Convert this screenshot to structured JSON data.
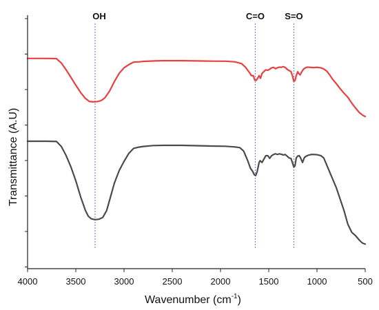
{
  "chart_data": {
    "type": "line",
    "title": "",
    "xlabel": "Wavenumber (cm",
    "xlabel_sup": "-1",
    "xlabel_end": ")",
    "ylabel": "Transmittance (A.U)",
    "xlim": [
      4000,
      500
    ],
    "x_reversed": true,
    "xticks": [
      "4000",
      "3500",
      "3000",
      "2500",
      "2000",
      "1500",
      "1000",
      "500"
    ],
    "ylim": [
      0,
      1
    ],
    "y_tick_labels_shown": false,
    "grid": false,
    "legend": "none",
    "annotations": [
      {
        "label": "OH",
        "x": 3300
      },
      {
        "label": "C=O",
        "x": 1640
      },
      {
        "label": "S=O",
        "x": 1240
      }
    ],
    "series": [
      {
        "color": "#e84040",
        "points": [
          [
            4000,
            0.865
          ],
          [
            3800,
            0.865
          ],
          [
            3700,
            0.864
          ],
          [
            3650,
            0.845
          ],
          [
            3600,
            0.815
          ],
          [
            3550,
            0.782
          ],
          [
            3500,
            0.748
          ],
          [
            3450,
            0.716
          ],
          [
            3400,
            0.69
          ],
          [
            3360,
            0.677
          ],
          [
            3320,
            0.675
          ],
          [
            3280,
            0.676
          ],
          [
            3240,
            0.68
          ],
          [
            3200,
            0.692
          ],
          [
            3150,
            0.722
          ],
          [
            3100,
            0.764
          ],
          [
            3050,
            0.8
          ],
          [
            3000,
            0.824
          ],
          [
            2950,
            0.838
          ],
          [
            2900,
            0.849
          ],
          [
            2850,
            0.85
          ],
          [
            2800,
            0.852
          ],
          [
            2700,
            0.854
          ],
          [
            2600,
            0.855
          ],
          [
            2400,
            0.855
          ],
          [
            2200,
            0.854
          ],
          [
            2050,
            0.853
          ],
          [
            1950,
            0.853
          ],
          [
            1850,
            0.85
          ],
          [
            1780,
            0.842
          ],
          [
            1740,
            0.826
          ],
          [
            1700,
            0.803
          ],
          [
            1680,
            0.79
          ],
          [
            1660,
            0.79
          ],
          [
            1645,
            0.77
          ],
          [
            1630,
            0.769
          ],
          [
            1615,
            0.778
          ],
          [
            1600,
            0.79
          ],
          [
            1585,
            0.778
          ],
          [
            1570,
            0.799
          ],
          [
            1550,
            0.808
          ],
          [
            1530,
            0.815
          ],
          [
            1510,
            0.813
          ],
          [
            1490,
            0.818
          ],
          [
            1470,
            0.824
          ],
          [
            1450,
            0.826
          ],
          [
            1430,
            0.82
          ],
          [
            1410,
            0.824
          ],
          [
            1390,
            0.827
          ],
          [
            1370,
            0.826
          ],
          [
            1350,
            0.829
          ],
          [
            1330,
            0.826
          ],
          [
            1310,
            0.818
          ],
          [
            1290,
            0.812
          ],
          [
            1270,
            0.808
          ],
          [
            1255,
            0.79
          ],
          [
            1240,
            0.765
          ],
          [
            1228,
            0.768
          ],
          [
            1215,
            0.79
          ],
          [
            1200,
            0.807
          ],
          [
            1190,
            0.8
          ],
          [
            1175,
            0.793
          ],
          [
            1160,
            0.805
          ],
          [
            1140,
            0.818
          ],
          [
            1120,
            0.824
          ],
          [
            1100,
            0.827
          ],
          [
            1070,
            0.826
          ],
          [
            1040,
            0.825
          ],
          [
            1000,
            0.826
          ],
          [
            960,
            0.824
          ],
          [
            930,
            0.819
          ],
          [
            900,
            0.81
          ],
          [
            870,
            0.794
          ],
          [
            840,
            0.775
          ],
          [
            800,
            0.755
          ],
          [
            760,
            0.733
          ],
          [
            720,
            0.713
          ],
          [
            680,
            0.695
          ],
          [
            640,
            0.67
          ],
          [
            600,
            0.648
          ],
          [
            560,
            0.628
          ],
          [
            530,
            0.618
          ],
          [
            500,
            0.611
          ]
        ]
      },
      {
        "color": "#4a4a4a",
        "points": [
          [
            4000,
            0.503
          ],
          [
            3800,
            0.503
          ],
          [
            3700,
            0.502
          ],
          [
            3650,
            0.48
          ],
          [
            3600,
            0.44
          ],
          [
            3550,
            0.39
          ],
          [
            3500,
            0.33
          ],
          [
            3450,
            0.26
          ],
          [
            3400,
            0.2
          ],
          [
            3370,
            0.175
          ],
          [
            3340,
            0.164
          ],
          [
            3300,
            0.16
          ],
          [
            3260,
            0.162
          ],
          [
            3220,
            0.17
          ],
          [
            3180,
            0.2
          ],
          [
            3140,
            0.26
          ],
          [
            3100,
            0.32
          ],
          [
            3050,
            0.375
          ],
          [
            3000,
            0.415
          ],
          [
            2950,
            0.45
          ],
          [
            2900,
            0.472
          ],
          [
            2850,
            0.477
          ],
          [
            2800,
            0.48
          ],
          [
            2700,
            0.484
          ],
          [
            2600,
            0.485
          ],
          [
            2400,
            0.485
          ],
          [
            2200,
            0.483
          ],
          [
            2100,
            0.482
          ],
          [
            1950,
            0.481
          ],
          [
            1850,
            0.478
          ],
          [
            1800,
            0.475
          ],
          [
            1760,
            0.46
          ],
          [
            1720,
            0.42
          ],
          [
            1690,
            0.385
          ],
          [
            1665,
            0.37
          ],
          [
            1650,
            0.356
          ],
          [
            1635,
            0.353
          ],
          [
            1620,
            0.37
          ],
          [
            1600,
            0.41
          ],
          [
            1590,
            0.418
          ],
          [
            1570,
            0.41
          ],
          [
            1550,
            0.425
          ],
          [
            1530,
            0.44
          ],
          [
            1510,
            0.44
          ],
          [
            1490,
            0.428
          ],
          [
            1470,
            0.44
          ],
          [
            1450,
            0.445
          ],
          [
            1430,
            0.448
          ],
          [
            1410,
            0.445
          ],
          [
            1390,
            0.448
          ],
          [
            1370,
            0.446
          ],
          [
            1350,
            0.443
          ],
          [
            1330,
            0.445
          ],
          [
            1310,
            0.438
          ],
          [
            1290,
            0.43
          ],
          [
            1270,
            0.428
          ],
          [
            1255,
            0.41
          ],
          [
            1240,
            0.39
          ],
          [
            1228,
            0.395
          ],
          [
            1215,
            0.43
          ],
          [
            1200,
            0.438
          ],
          [
            1185,
            0.44
          ],
          [
            1170,
            0.43
          ],
          [
            1150,
            0.41
          ],
          [
            1130,
            0.432
          ],
          [
            1110,
            0.438
          ],
          [
            1090,
            0.442
          ],
          [
            1060,
            0.445
          ],
          [
            1030,
            0.445
          ],
          [
            1000,
            0.444
          ],
          [
            960,
            0.44
          ],
          [
            930,
            0.43
          ],
          [
            900,
            0.4
          ],
          [
            870,
            0.37
          ],
          [
            840,
            0.34
          ],
          [
            800,
            0.3
          ],
          [
            760,
            0.25
          ],
          [
            720,
            0.2
          ],
          [
            680,
            0.14
          ],
          [
            640,
            0.105
          ],
          [
            600,
            0.09
          ],
          [
            560,
            0.07
          ],
          [
            530,
            0.058
          ],
          [
            500,
            0.053
          ]
        ]
      }
    ]
  }
}
